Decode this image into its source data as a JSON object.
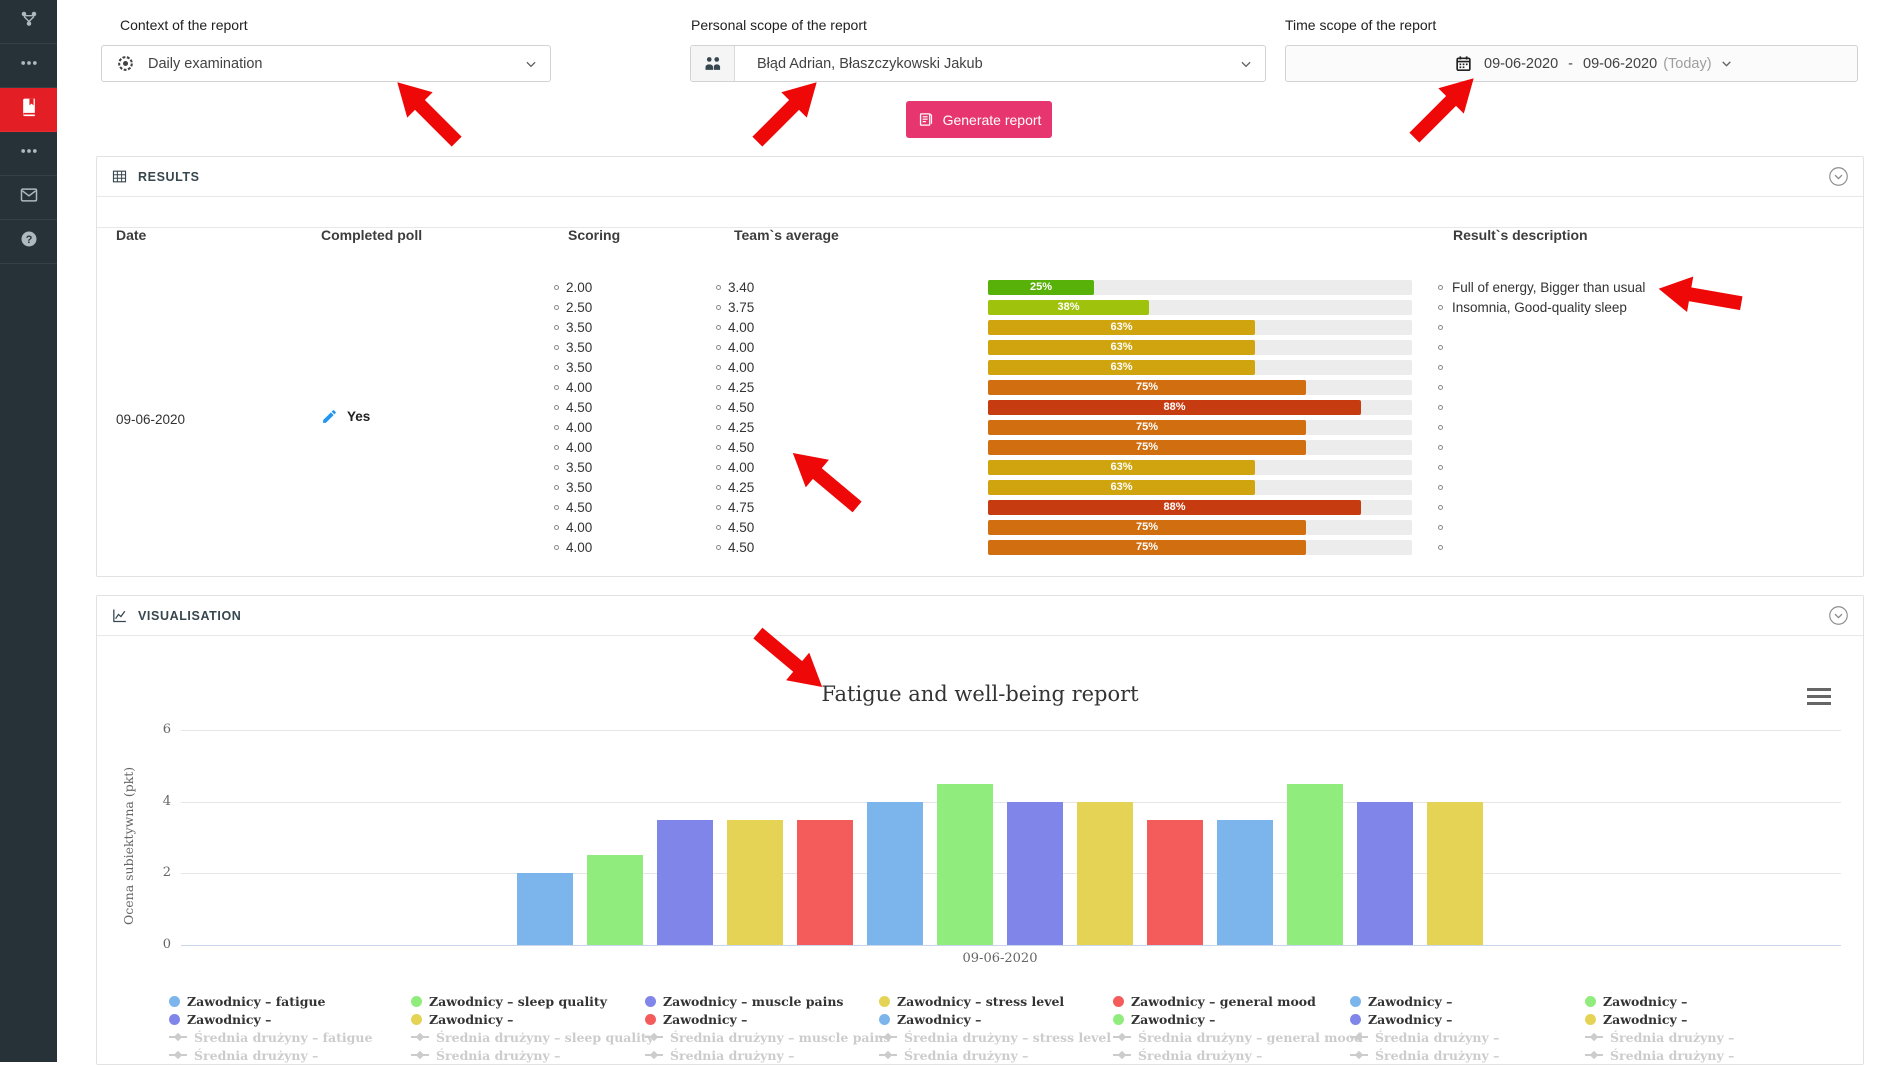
{
  "sidebar": {
    "icons": [
      "team-structure",
      "more",
      "reports-book",
      "more",
      "messages",
      "help"
    ],
    "active_index": 2,
    "active_color": "#e31e24",
    "background": "#263238"
  },
  "filters": {
    "context": {
      "label": "Context of the report",
      "value": "Daily examination"
    },
    "personal": {
      "label": "Personal scope of the report",
      "value": "Błąd Adrian, Błaszczykowski Jakub"
    },
    "time": {
      "label": "Time scope of the report",
      "from": "09-06-2020",
      "dash": "-",
      "to": "09-06-2020",
      "today": "(Today)"
    },
    "generate": {
      "label": "Generate report",
      "color": "#e7366f"
    }
  },
  "results": {
    "title": "RESULTS",
    "columns": {
      "date": "Date",
      "completed": "Completed poll",
      "scoring": "Scoring",
      "average": "Team`s average",
      "description": "Result`s description"
    },
    "date": "09-06-2020",
    "completed": "Yes",
    "rows": [
      {
        "scoring": "2.00",
        "average": "3.40",
        "percent": 25,
        "color": "#58b109",
        "description": "Full of energy, Bigger than usual"
      },
      {
        "scoring": "2.50",
        "average": "3.75",
        "percent": 38,
        "color": "#9fc20c",
        "description": "Insomnia, Good-quality sleep"
      },
      {
        "scoring": "3.50",
        "average": "4.00",
        "percent": 63,
        "color": "#cfa40e",
        "description": ""
      },
      {
        "scoring": "3.50",
        "average": "4.00",
        "percent": 63,
        "color": "#cfa40e",
        "description": ""
      },
      {
        "scoring": "3.50",
        "average": "4.00",
        "percent": 63,
        "color": "#cfa40e",
        "description": ""
      },
      {
        "scoring": "4.00",
        "average": "4.25",
        "percent": 75,
        "color": "#d06e10",
        "description": ""
      },
      {
        "scoring": "4.50",
        "average": "4.50",
        "percent": 88,
        "color": "#c63c10",
        "description": ""
      },
      {
        "scoring": "4.00",
        "average": "4.25",
        "percent": 75,
        "color": "#d06e10",
        "description": ""
      },
      {
        "scoring": "4.00",
        "average": "4.50",
        "percent": 75,
        "color": "#d06e10",
        "description": ""
      },
      {
        "scoring": "3.50",
        "average": "4.00",
        "percent": 63,
        "color": "#cfa40e",
        "description": ""
      },
      {
        "scoring": "3.50",
        "average": "4.25",
        "percent": 63,
        "color": "#cfa40e",
        "description": ""
      },
      {
        "scoring": "4.50",
        "average": "4.75",
        "percent": 88,
        "color": "#c63c10",
        "description": ""
      },
      {
        "scoring": "4.00",
        "average": "4.50",
        "percent": 75,
        "color": "#d06e10",
        "description": ""
      },
      {
        "scoring": "4.00",
        "average": "4.50",
        "percent": 75,
        "color": "#d06e10",
        "description": ""
      }
    ]
  },
  "visualisation": {
    "title": "VISUALISATION"
  },
  "chart_data": {
    "type": "bar",
    "title": "Fatigue and well-being report",
    "categories": [
      "09-06-2020"
    ],
    "xlabel": "",
    "ylabel": "Ocena subiektywna (pkt)",
    "ylim": [
      0,
      6
    ],
    "yticks": [
      0,
      2,
      4,
      6
    ],
    "grid": true,
    "legend_position": "bottom",
    "series": [
      {
        "name": "Zawodnicy – fatigue",
        "color": "#7cb5ec",
        "values": [
          2.0
        ]
      },
      {
        "name": "Zawodnicy – sleep quality",
        "color": "#90ed7d",
        "values": [
          2.5
        ]
      },
      {
        "name": "Zawodnicy – muscle pains",
        "color": "#8085e9",
        "values": [
          3.5
        ]
      },
      {
        "name": "Zawodnicy – stress level",
        "color": "#e4d354",
        "values": [
          3.5
        ]
      },
      {
        "name": "Zawodnicy – general mood",
        "color": "#f45b5b",
        "values": [
          3.5
        ]
      },
      {
        "name": "Zawodnicy –",
        "color": "#7cb5ec",
        "values": [
          4.0
        ]
      },
      {
        "name": "Zawodnicy –",
        "color": "#90ed7d",
        "values": [
          4.5
        ]
      },
      {
        "name": "Zawodnicy –",
        "color": "#8085e9",
        "values": [
          4.0
        ]
      },
      {
        "name": "Zawodnicy –",
        "color": "#e4d354",
        "values": [
          4.0
        ]
      },
      {
        "name": "Zawodnicy –",
        "color": "#f45b5b",
        "values": [
          3.5
        ]
      },
      {
        "name": "Zawodnicy –",
        "color": "#7cb5ec",
        "values": [
          3.5
        ]
      },
      {
        "name": "Zawodnicy –",
        "color": "#90ed7d",
        "values": [
          4.5
        ]
      },
      {
        "name": "Zawodnicy –",
        "color": "#8085e9",
        "values": [
          4.0
        ]
      },
      {
        "name": "Zawodnicy –",
        "color": "#e4d354",
        "values": [
          4.0
        ]
      }
    ]
  },
  "legend": {
    "columns": [
      [
        {
          "label": "Zawodnicy – fatigue",
          "color": "#7cb5ec",
          "muted": false
        },
        {
          "label": "Zawodnicy –",
          "color": "#8085e9",
          "muted": false
        },
        {
          "label": "Średnia drużyny – fatigue",
          "muted": true
        },
        {
          "label": "Średnia drużyny –",
          "muted": true
        }
      ],
      [
        {
          "label": "Zawodnicy – sleep quality",
          "color": "#90ed7d",
          "muted": false
        },
        {
          "label": "Zawodnicy –",
          "color": "#e4d354",
          "muted": false
        },
        {
          "label": "Średnia drużyny – sleep quality",
          "muted": true
        },
        {
          "label": "Średnia drużyny –",
          "muted": true
        }
      ],
      [
        {
          "label": "Zawodnicy – muscle pains",
          "color": "#8085e9",
          "muted": false
        },
        {
          "label": "Zawodnicy –",
          "color": "#f45b5b",
          "muted": false
        },
        {
          "label": "Średnia drużyny – muscle pains",
          "muted": true
        },
        {
          "label": "Średnia drużyny –",
          "muted": true
        }
      ],
      [
        {
          "label": "Zawodnicy – stress level",
          "color": "#e4d354",
          "muted": false
        },
        {
          "label": "Zawodnicy –",
          "color": "#7cb5ec",
          "muted": false
        },
        {
          "label": "Średnia drużyny – stress level",
          "muted": true
        },
        {
          "label": "Średnia drużyny –",
          "muted": true
        }
      ],
      [
        {
          "label": "Zawodnicy – general mood",
          "color": "#f45b5b",
          "muted": false
        },
        {
          "label": "Zawodnicy –",
          "color": "#90ed7d",
          "muted": false
        },
        {
          "label": "Średnia drużyny – general mood",
          "muted": true
        },
        {
          "label": "Średnia drużyny –",
          "muted": true
        }
      ],
      [
        {
          "label": "Zawodnicy –",
          "color": "#7cb5ec",
          "muted": false
        },
        {
          "label": "Zawodnicy –",
          "color": "#8085e9",
          "muted": false
        },
        {
          "label": "Średnia drużyny –",
          "muted": true
        },
        {
          "label": "Średnia drużyny –",
          "muted": true
        }
      ],
      [
        {
          "label": "Zawodnicy –",
          "color": "#90ed7d",
          "muted": false
        },
        {
          "label": "Zawodnicy –",
          "color": "#e4d354",
          "muted": false
        },
        {
          "label": "Średnia drużyny –",
          "muted": true
        },
        {
          "label": "Średnia drużyny –",
          "muted": true
        }
      ]
    ]
  }
}
